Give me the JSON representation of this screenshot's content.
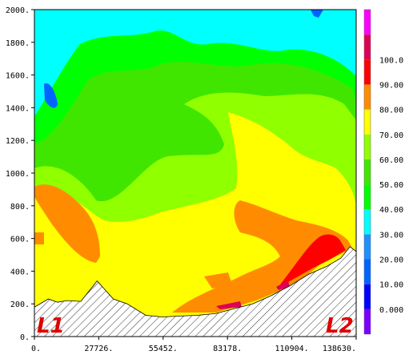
{
  "chart_data": {
    "type": "heatmap",
    "subtype": "filled-contour cross-section",
    "x": {
      "ticks": [
        0,
        27726,
        55452,
        83178,
        110904,
        138630
      ],
      "tick_labels": [
        "0.",
        "27726.",
        "55452.",
        "83178.",
        "110904.",
        "138630."
      ],
      "range": [
        0,
        138630
      ]
    },
    "y": {
      "ticks": [
        0,
        200,
        400,
        600,
        800,
        1000,
        1200,
        1400,
        1600,
        1800,
        2000
      ],
      "tick_labels": [
        "0.",
        "200.",
        "400.",
        "600.",
        "800.",
        "1000.",
        "1200.",
        "1400.",
        "1600.",
        "1800.",
        "2000."
      ],
      "range": [
        0,
        2000
      ]
    },
    "colorbar": {
      "levels": [
        0,
        10,
        20,
        30,
        40,
        50,
        60,
        70,
        80,
        90,
        100
      ],
      "labels": [
        "0.000",
        "10.00",
        "20.00",
        "30.00",
        "40.00",
        "50.00",
        "60.00",
        "70.00",
        "80.00",
        "90.00",
        "100.0"
      ],
      "colors": [
        "#7b00ff",
        "#0000ff",
        "#0064ff",
        "#1e90ff",
        "#00ffff",
        "#00ff00",
        "#41e600",
        "#90ff00",
        "#ffff00",
        "#ff8c00",
        "#ff0000",
        "#dd0055",
        "#ff00ff"
      ]
    },
    "terrain_profile": {
      "x": [
        0,
        6000,
        10000,
        14000,
        20000,
        27000,
        34000,
        40000,
        48000,
        55000,
        62000,
        70000,
        78000,
        86000,
        94000,
        102000,
        110000,
        118000,
        126000,
        132000,
        136000,
        138630
      ],
      "y": [
        180,
        230,
        210,
        220,
        215,
        340,
        230,
        200,
        130,
        120,
        125,
        130,
        140,
        170,
        200,
        250,
        310,
        380,
        430,
        480,
        550,
        520
      ]
    },
    "section_labels": {
      "start": "L1",
      "end": "L2"
    }
  }
}
